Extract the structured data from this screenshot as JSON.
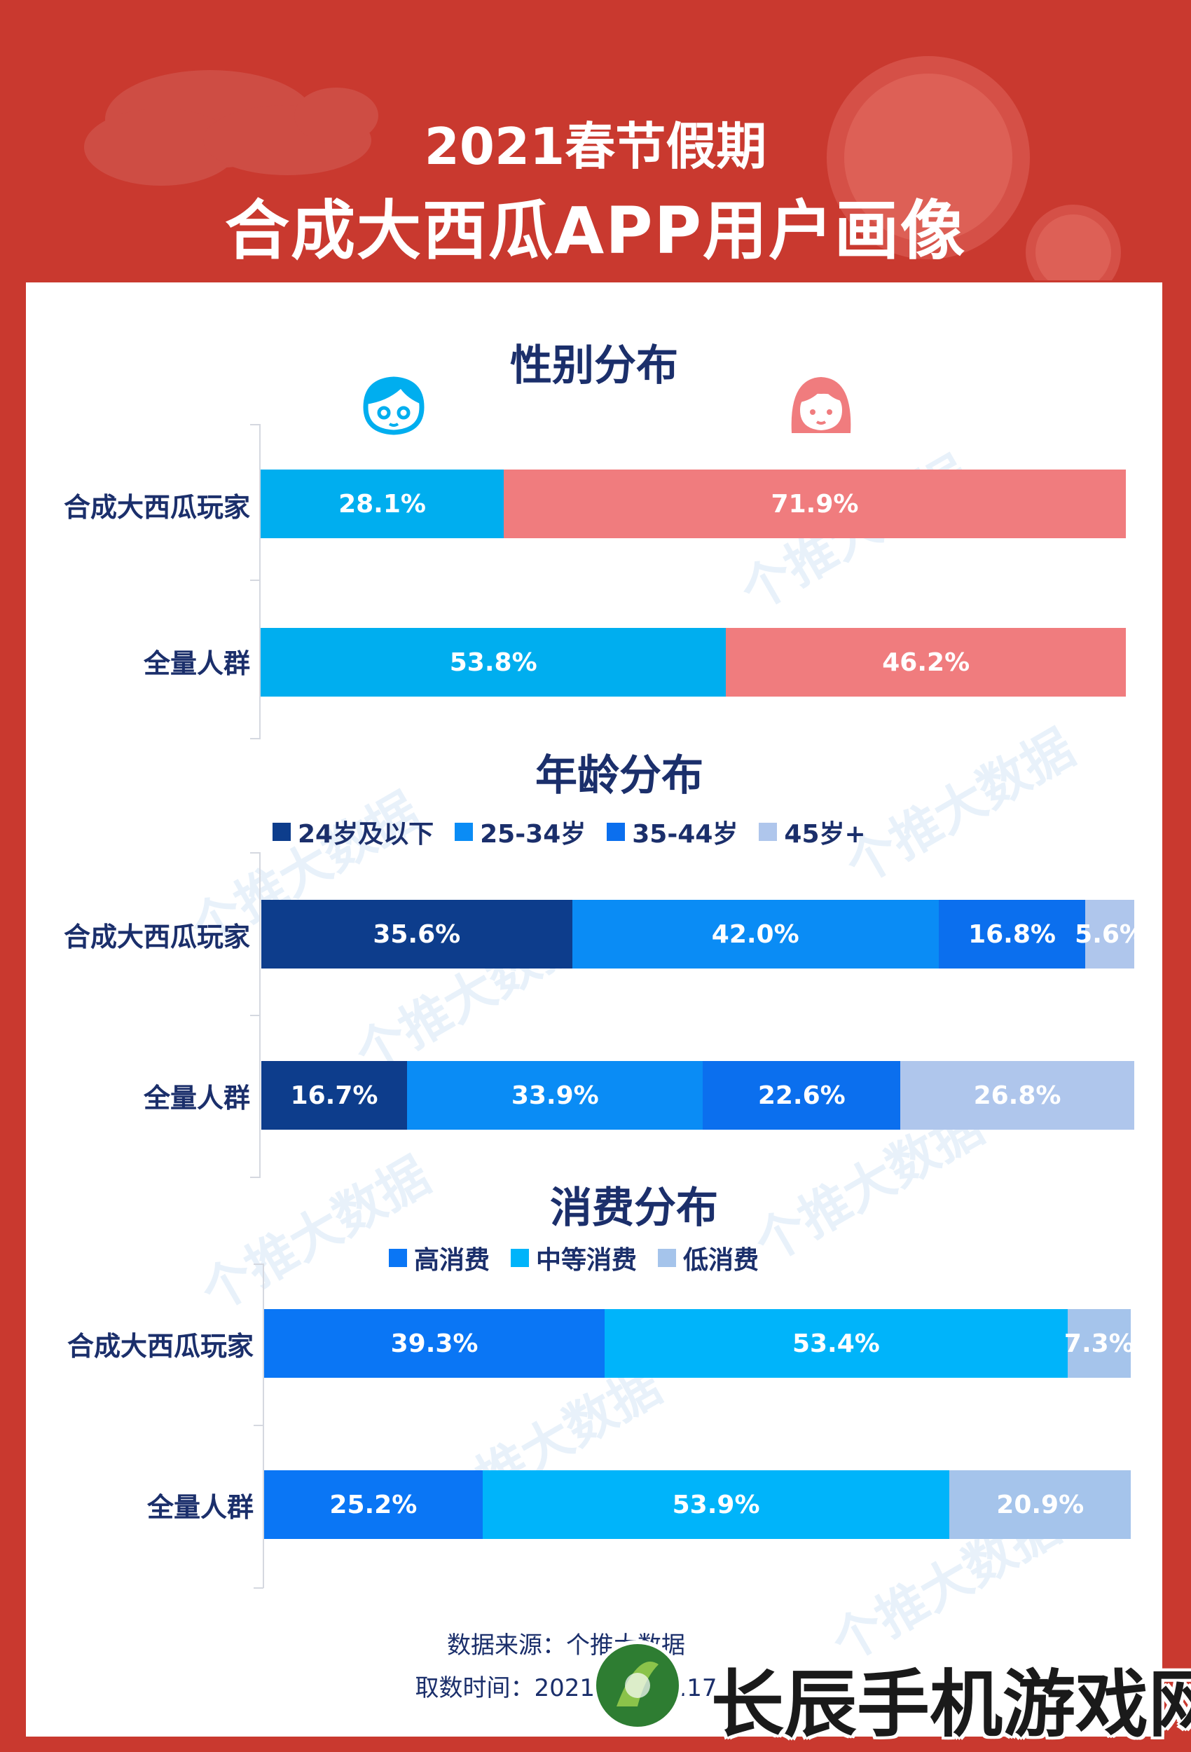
{
  "header": {
    "title_line1": "2021春节假期",
    "title_line2": "合成大西瓜APP用户画像"
  },
  "gender_section": {
    "title": "性别分布",
    "icons": [
      "boy-face-icon",
      "girl-face-icon"
    ]
  },
  "age_section": {
    "title": "年龄分布",
    "legend": [
      "24岁及以下",
      "25-34岁",
      "35-44岁",
      "45岁+"
    ]
  },
  "spend_section": {
    "title": "消费分布",
    "legend": [
      "高消费",
      "中等消费",
      "低消费"
    ]
  },
  "footer": {
    "source": "数据来源：个推大数据",
    "time": "取数时间：2021.2.11-2.17"
  },
  "watermark": "个推大数据",
  "brand": "长辰手机游戏网",
  "colors": {
    "header_bg": "#C9392F",
    "title_navy": "#1B2F6B",
    "male": "#00AEEF",
    "female": "#F07C7E",
    "age_24": "#0D3D8C",
    "age_25_34": "#0A8CF5",
    "age_35_44": "#0B6FEE",
    "age_45": "#AFC6EC",
    "spend_high": "#0A76F5",
    "spend_mid": "#00B4FA",
    "spend_low": "#A5C4EB"
  },
  "chart_data": [
    {
      "type": "bar",
      "stacked": true,
      "orientation": "horizontal",
      "title": "性别分布",
      "categories": [
        "合成大西瓜玩家",
        "全量人群"
      ],
      "series": [
        {
          "values": [
            28.1,
            53.8
          ],
          "labels": [
            "28.1%",
            "53.8%"
          ],
          "color": "#00AEEF"
        },
        {
          "values": [
            71.9,
            46.2
          ],
          "labels": [
            "71.9%",
            "46.2%"
          ],
          "color": "#F07C7E"
        }
      ],
      "unit": "%"
    },
    {
      "type": "bar",
      "stacked": true,
      "orientation": "horizontal",
      "title": "年龄分布",
      "categories": [
        "合成大西瓜玩家",
        "全量人群"
      ],
      "series": [
        {
          "name": "24岁及以下",
          "values": [
            35.6,
            16.7
          ],
          "labels": [
            "35.6%",
            "16.7%"
          ],
          "color": "#0D3D8C"
        },
        {
          "name": "25-34岁",
          "values": [
            42.0,
            33.9
          ],
          "labels": [
            "42.0%",
            "33.9%"
          ],
          "color": "#0A8CF5"
        },
        {
          "name": "35-44岁",
          "values": [
            16.8,
            22.6
          ],
          "labels": [
            "16.8%",
            "22.6%"
          ],
          "color": "#0B6FEE"
        },
        {
          "name": "45岁+",
          "values": [
            5.6,
            26.8
          ],
          "labels": [
            "5.6%",
            "26.8%"
          ],
          "color": "#AFC6EC"
        }
      ],
      "legend_position": "top",
      "unit": "%"
    },
    {
      "type": "bar",
      "stacked": true,
      "orientation": "horizontal",
      "title": "消费分布",
      "categories": [
        "合成大西瓜玩家",
        "全量人群"
      ],
      "series": [
        {
          "name": "高消费",
          "values": [
            39.3,
            25.2
          ],
          "labels": [
            "39.3%",
            "25.2%"
          ],
          "color": "#0A76F5"
        },
        {
          "name": "中等消费",
          "values": [
            53.4,
            53.9
          ],
          "labels": [
            "53.4%",
            "53.9%"
          ],
          "color": "#00B4FA"
        },
        {
          "name": "低消费",
          "values": [
            7.3,
            20.9
          ],
          "labels": [
            "7.3%",
            "20.9%"
          ],
          "color": "#A5C4EB"
        }
      ],
      "legend_position": "top",
      "unit": "%"
    }
  ]
}
